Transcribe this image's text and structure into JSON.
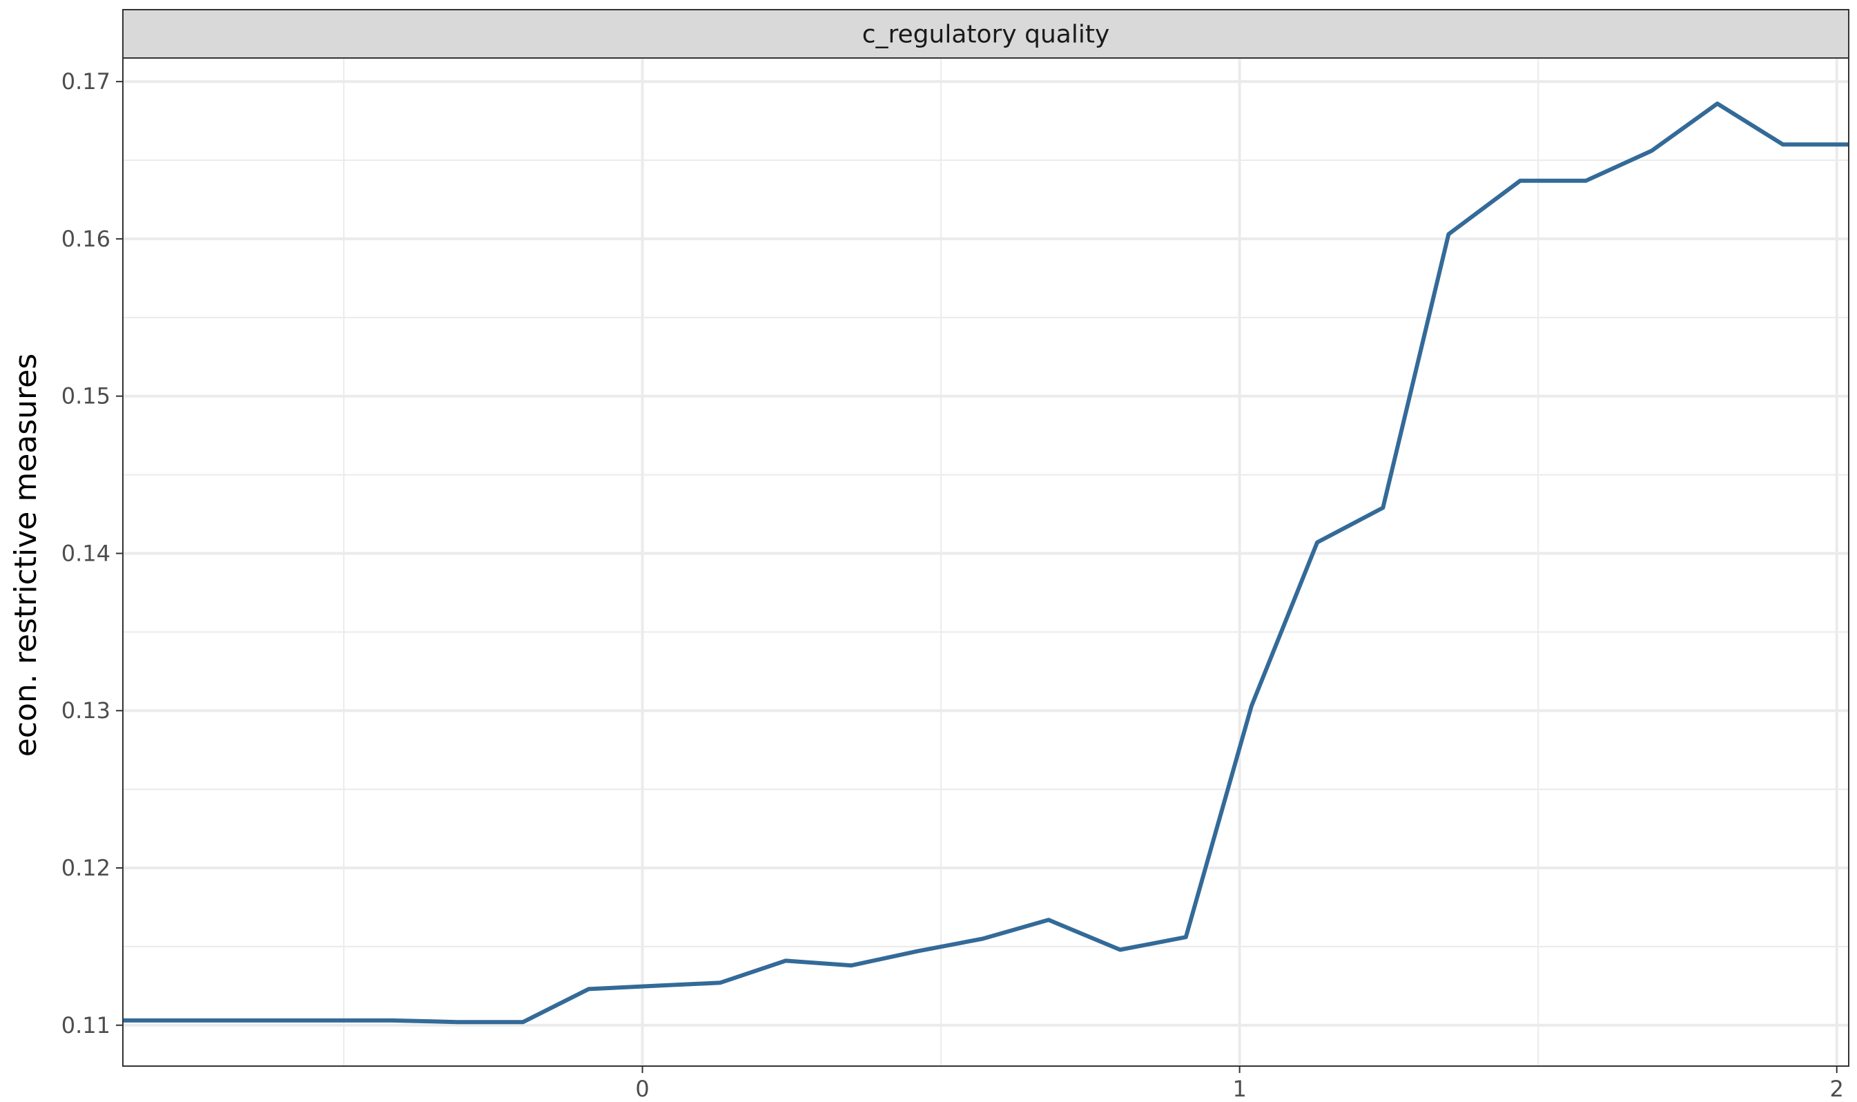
{
  "chart_data": {
    "type": "line",
    "facet_label": "c_regulatory quality",
    "title": "",
    "xlabel": "",
    "ylabel": "econ. restrictive measures",
    "xlim": [
      -0.87,
      2.02
    ],
    "ylim": [
      0.1074,
      0.1715
    ],
    "x_ticks": [
      0,
      1,
      2
    ],
    "x_tick_labels": [
      "0",
      "1",
      "2"
    ],
    "x_minor_ticks": [
      -0.5,
      0.5,
      1.5
    ],
    "y_ticks": [
      0.11,
      0.12,
      0.13,
      0.14,
      0.15,
      0.16,
      0.17
    ],
    "y_tick_labels": [
      "0.11",
      "0.12",
      "0.13",
      "0.14",
      "0.15",
      "0.16",
      "0.17"
    ],
    "y_minor_ticks": [
      0.115,
      0.125,
      0.135,
      0.145,
      0.155,
      0.165
    ],
    "grid": true,
    "colors": {
      "line": "#336a98",
      "grid": "#ebebeb",
      "strip_fill": "#d9d9d9",
      "panel_border": "#333333"
    },
    "series": [
      {
        "x": [
          -0.87,
          -0.42,
          -0.31,
          -0.2,
          -0.09,
          0.02,
          0.13,
          0.24,
          0.35,
          0.46,
          0.57,
          0.68,
          0.8,
          0.91,
          1.02,
          1.13,
          1.24,
          1.35,
          1.47,
          1.58,
          1.69,
          1.8,
          1.91,
          2.02
        ],
        "y": [
          0.1103,
          0.1103,
          0.1102,
          0.1102,
          0.1123,
          0.1125,
          0.1127,
          0.1141,
          0.1138,
          0.1147,
          0.1155,
          0.1167,
          0.1148,
          0.1156,
          0.1303,
          0.1407,
          0.1429,
          0.1603,
          0.1637,
          0.1637,
          0.1656,
          0.1686,
          0.166,
          0.166
        ]
      }
    ]
  }
}
